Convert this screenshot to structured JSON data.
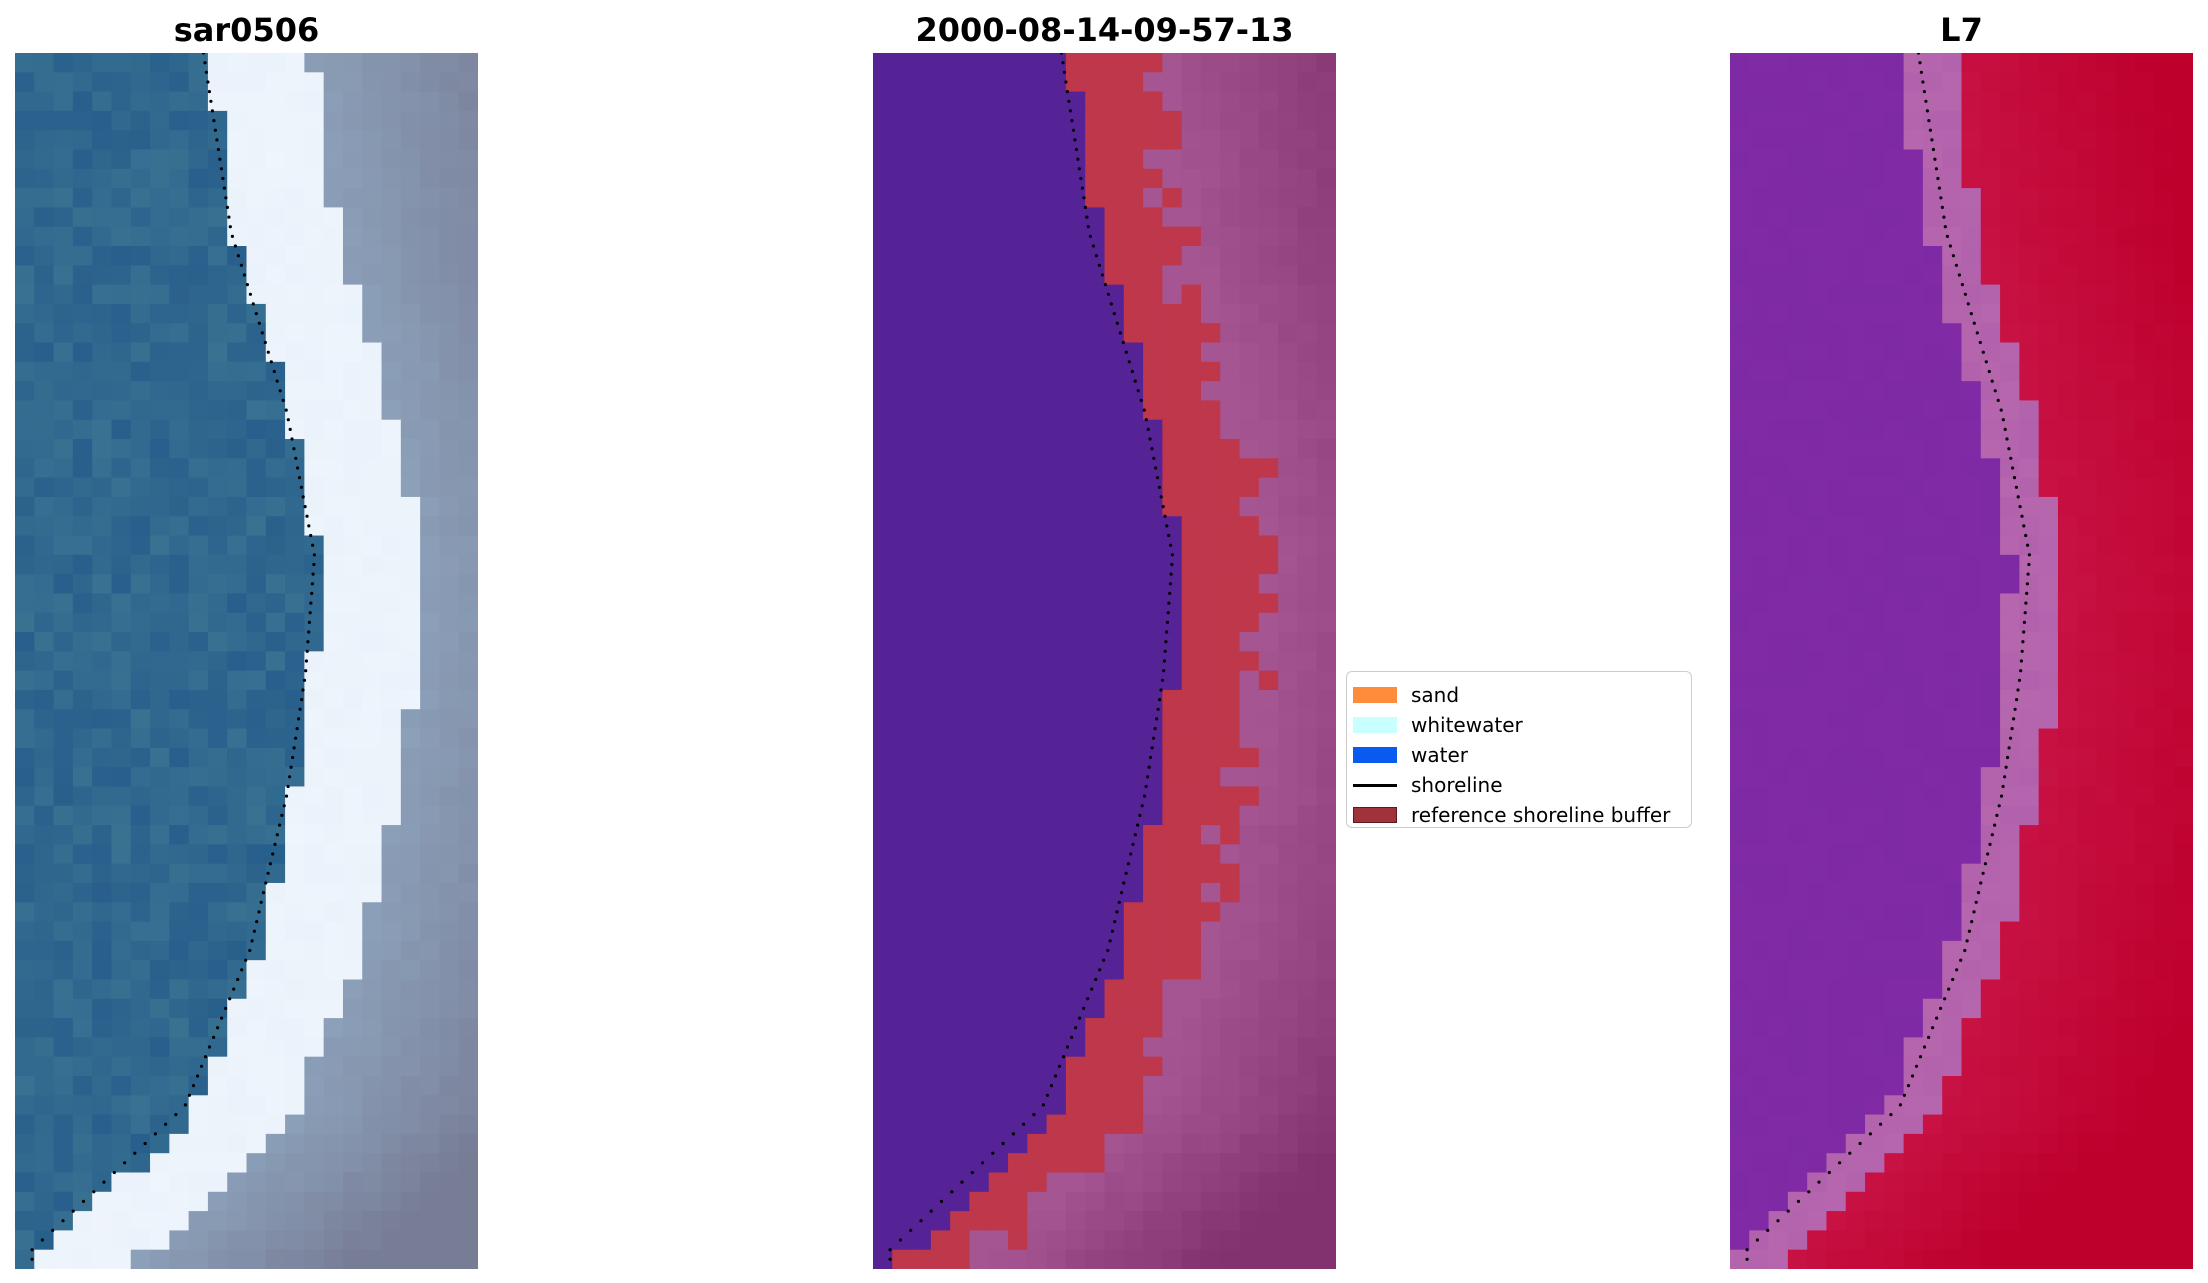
{
  "panels": [
    {
      "title": "sar0506",
      "kind": "rgb"
    },
    {
      "title": "2000-08-14-09-57-13",
      "kind": "classified"
    },
    {
      "title": "L7",
      "kind": "index"
    }
  ],
  "legend": {
    "items": [
      {
        "label": "sand",
        "type": "patch",
        "color": "#ff8c3a"
      },
      {
        "label": "whitewater",
        "type": "patch",
        "color": "#c8ffff"
      },
      {
        "label": "water",
        "type": "patch",
        "color": "#0a5af0"
      },
      {
        "label": "shoreline",
        "type": "line",
        "color": "#000000"
      },
      {
        "label": "reference shoreline buffer",
        "type": "patch",
        "color": "#a0323c"
      }
    ]
  }
}
